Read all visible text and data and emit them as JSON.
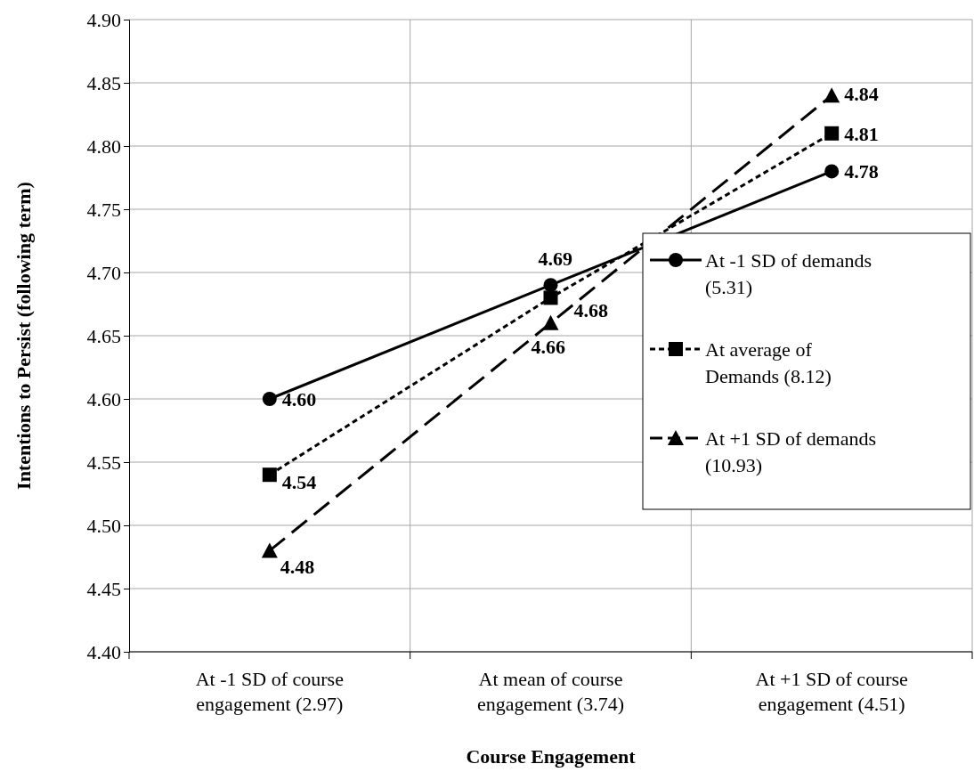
{
  "chart_data": {
    "type": "line",
    "xlabel": "Course Engagement",
    "ylabel": "Intentions to Persist (following term)",
    "categories": [
      "At -1 SD of course engagement (2.97)",
      "At mean of course engagement (3.74)",
      "At +1 SD of course engagement (4.51)"
    ],
    "series": [
      {
        "name": "At -1 SD of demands (5.31)",
        "color": "#000000",
        "marker": "circle",
        "line_style": "solid",
        "values": [
          4.6,
          4.69,
          4.78
        ],
        "value_labels": [
          "4.60",
          "4.69",
          "4.78"
        ]
      },
      {
        "name": "At average of Demands (8.12)",
        "color": "#000000",
        "marker": "square",
        "line_style": "dotted",
        "values": [
          4.54,
          4.68,
          4.81
        ],
        "value_labels": [
          "4.54",
          "4.68",
          "4.81"
        ]
      },
      {
        "name": "At +1 SD of demands (10.93)",
        "color": "#000000",
        "marker": "triangle",
        "line_style": "dashed",
        "values": [
          4.48,
          4.66,
          4.84
        ],
        "value_labels": [
          "4.48",
          "4.66",
          "4.84"
        ]
      }
    ],
    "ylim": [
      4.4,
      4.9
    ],
    "yticks": [
      "4.40",
      "4.45",
      "4.50",
      "4.55",
      "4.60",
      "4.65",
      "4.70",
      "4.75",
      "4.80",
      "4.85",
      "4.90"
    ],
    "grid": true,
    "legend": "right"
  }
}
